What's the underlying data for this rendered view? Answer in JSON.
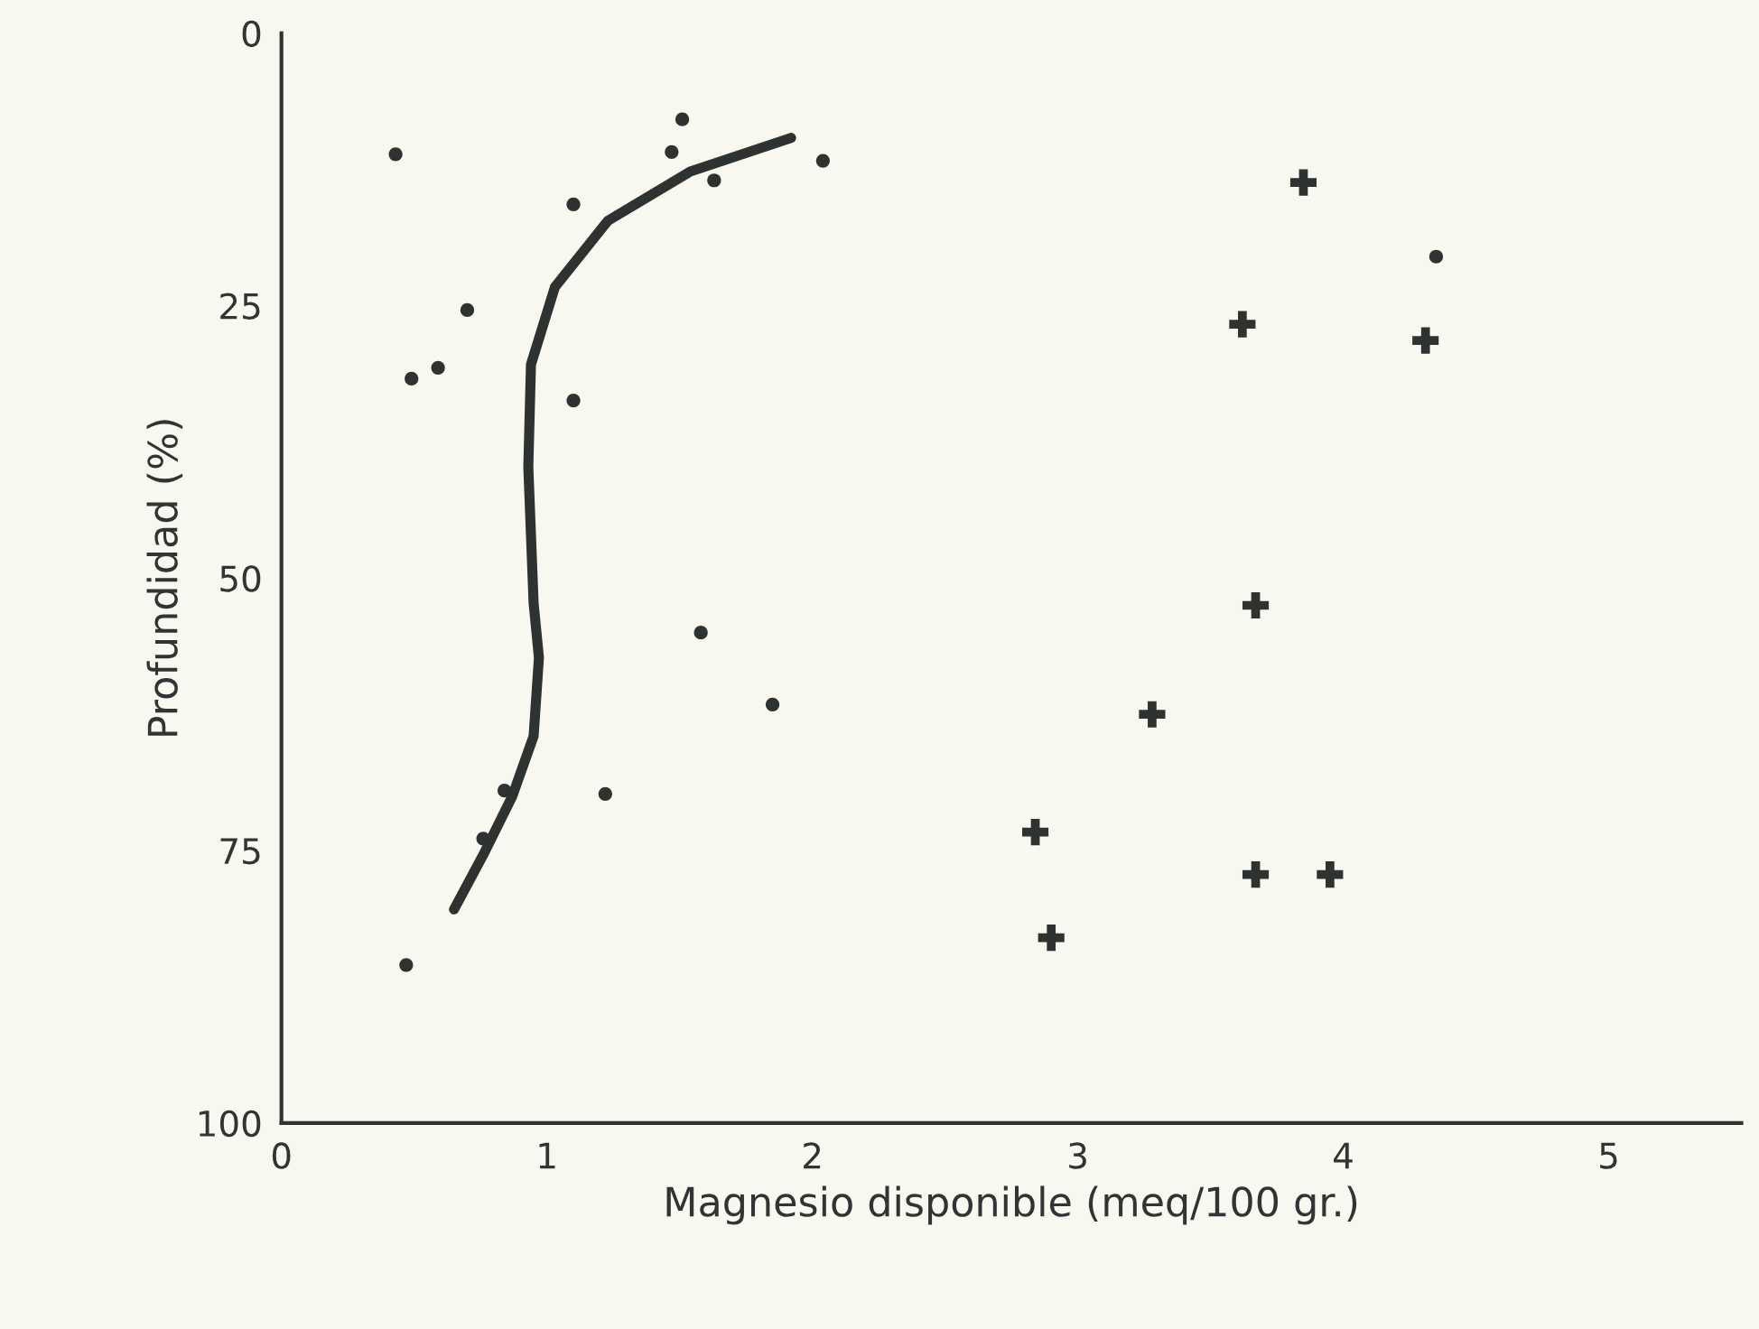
{
  "chart_data": {
    "type": "scatter",
    "xlabel": "Magnesio disponible (meq/100 gr.)",
    "ylabel": "Profundidad (%)",
    "xlim": [
      0,
      5.5
    ],
    "xticks": [
      0,
      1,
      2,
      3,
      4,
      5
    ],
    "ylim": [
      100,
      0
    ],
    "yticks": [
      0,
      25,
      50,
      75,
      100
    ],
    "grid": false,
    "legend": false,
    "series": [
      {
        "type": "scatter",
        "marker": "circle",
        "color": "#2e3230",
        "x": [
          0.43,
          1.51,
          1.47,
          2.04,
          1.63,
          1.1,
          0.7,
          0.59,
          0.49,
          1.1,
          1.58,
          1.85,
          0.84,
          1.22,
          0.76,
          0.47,
          4.35
        ],
        "values": [
          11.1,
          7.9,
          10.9,
          11.7,
          13.5,
          15.7,
          25.4,
          30.7,
          31.7,
          33.7,
          55.0,
          61.6,
          69.5,
          69.8,
          73.9,
          85.5,
          20.5
        ]
      },
      {
        "type": "scatter",
        "marker": "cross",
        "color": "#2e3230",
        "x": [
          3.85,
          3.62,
          4.31,
          3.67,
          3.28,
          2.84,
          3.67,
          3.95,
          2.9
        ],
        "values": [
          13.7,
          26.7,
          28.2,
          52.5,
          62.5,
          73.3,
          77.2,
          77.2,
          83.0
        ]
      },
      {
        "type": "line",
        "marker": "none",
        "line_style": "solid",
        "color": "#2e3230",
        "x": [
          1.92,
          1.54,
          1.23,
          1.03,
          0.94,
          0.93,
          0.95,
          0.97,
          0.95,
          0.87,
          0.76,
          0.65
        ],
        "values": [
          9.6,
          12.7,
          17.2,
          23.3,
          30.4,
          39.8,
          52.3,
          57.3,
          64.5,
          70.0,
          75.4,
          80.4
        ]
      }
    ]
  }
}
